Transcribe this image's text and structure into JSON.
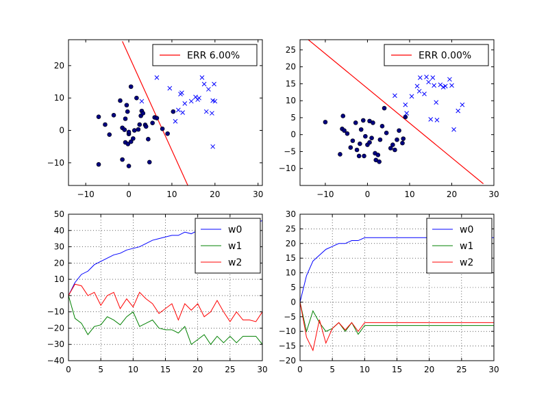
{
  "chart_data": [
    {
      "type": "scatter",
      "xlim": [
        -14,
        31
      ],
      "ylim": [
        -17,
        28
      ],
      "xticks": [
        -10,
        0,
        10,
        20,
        30
      ],
      "yticks": [
        -10,
        0,
        10,
        20
      ],
      "legend": {
        "label": "ERR 6.00%",
        "placement": "top-right"
      },
      "colors": {
        "boundary": "#ff0000",
        "class0": "#000080",
        "class1": "#0000ff"
      },
      "grid": false,
      "decision_line": [
        [
          -1.5,
          27.5
        ],
        [
          13.7,
          -17
        ]
      ],
      "class0": {
        "marker": "circle",
        "points": [
          [
            -7,
            4.2
          ],
          [
            -5.5,
            1.8
          ],
          [
            -4.5,
            -1.3
          ],
          [
            -3.5,
            4.7
          ],
          [
            -2,
            9.2
          ],
          [
            -1.5,
            0.8
          ],
          [
            -1.5,
            -9
          ],
          [
            -1,
            0.2
          ],
          [
            -0.8,
            3.6
          ],
          [
            -0.8,
            -3.7
          ],
          [
            -0.5,
            7.8
          ],
          [
            -0.3,
            5.8
          ],
          [
            -0.2,
            -4.2
          ],
          [
            0,
            -11
          ],
          [
            0,
            -1.1
          ],
          [
            0,
            -0.5
          ],
          [
            0.5,
            -3.5
          ],
          [
            0.5,
            13.5
          ],
          [
            1,
            -2.5
          ],
          [
            1.3,
            0
          ],
          [
            1.8,
            10
          ],
          [
            2.2,
            0.3
          ],
          [
            2.5,
            1.8
          ],
          [
            2.8,
            4.5
          ],
          [
            3,
            6
          ],
          [
            3.3,
            5.3
          ],
          [
            3.8,
            1.7
          ],
          [
            4,
            1.2
          ],
          [
            4.5,
            -2.7
          ],
          [
            4.8,
            -9.8
          ],
          [
            5.5,
            2.3
          ],
          [
            6,
            4
          ],
          [
            6.5,
            3.8
          ],
          [
            7.8,
            0.5
          ],
          [
            9,
            -1
          ],
          [
            10.3,
            5.8
          ],
          [
            -7,
            -10.5
          ]
        ]
      },
      "class1": {
        "marker": "x",
        "points": [
          [
            3,
            9
          ],
          [
            6.5,
            16.3
          ],
          [
            9.5,
            13
          ],
          [
            10.8,
            2.8
          ],
          [
            11.5,
            6.3
          ],
          [
            12,
            11.2
          ],
          [
            12.3,
            11.6
          ],
          [
            12.5,
            5.5
          ],
          [
            13,
            8.3
          ],
          [
            14.5,
            9
          ],
          [
            15.5,
            10.3
          ],
          [
            16,
            9.5
          ],
          [
            16.3,
            10
          ],
          [
            17,
            16.3
          ],
          [
            17.5,
            14.3
          ],
          [
            18,
            5.8
          ],
          [
            18.5,
            12.7
          ],
          [
            19.3,
            5.3
          ],
          [
            19.5,
            9.2
          ],
          [
            19.8,
            14.3
          ],
          [
            20,
            9
          ],
          [
            19.5,
            -5
          ]
        ]
      }
    },
    {
      "type": "scatter",
      "xlim": [
        -16,
        30
      ],
      "ylim": [
        -15,
        28
      ],
      "xticks": [
        -10,
        0,
        10,
        20,
        30
      ],
      "yticks": [
        -10,
        -5,
        0,
        5,
        10,
        15,
        20,
        25
      ],
      "legend": {
        "label": "ERR 0.00%",
        "placement": "top-right"
      },
      "colors": {
        "boundary": "#ff0000",
        "class0": "#000080",
        "class1": "#0000ff"
      },
      "grid": false,
      "decision_line": [
        [
          -16,
          30
        ],
        [
          27.5,
          -14.5
        ]
      ],
      "class0": {
        "marker": "circle",
        "points": [
          [
            -10,
            3.7
          ],
          [
            -6.5,
            -5.8
          ],
          [
            -6,
            1.7
          ],
          [
            -5.8,
            5.5
          ],
          [
            -5.5,
            1.2
          ],
          [
            -4.8,
            0.3
          ],
          [
            -4,
            -3.8
          ],
          [
            -3.5,
            -1.8
          ],
          [
            -2.8,
            3.5
          ],
          [
            -2.5,
            -4.5
          ],
          [
            -2,
            -6.3
          ],
          [
            -1.8,
            -2.7
          ],
          [
            -1.5,
            1.5
          ],
          [
            -1,
            4.2
          ],
          [
            -0.8,
            -6.3
          ],
          [
            -0.5,
            -0.5
          ],
          [
            0,
            -3
          ],
          [
            0.5,
            -2.3
          ],
          [
            0.5,
            4
          ],
          [
            1,
            -1
          ],
          [
            1.3,
            3.5
          ],
          [
            1.8,
            -5.5
          ],
          [
            2,
            -7.5
          ],
          [
            2.5,
            -6
          ],
          [
            2.8,
            -8
          ],
          [
            3,
            -1.5
          ],
          [
            3.5,
            2.5
          ],
          [
            4,
            7.8
          ],
          [
            4.5,
            0.5
          ],
          [
            5.5,
            -4
          ],
          [
            6,
            -3
          ],
          [
            6.5,
            -4.5
          ],
          [
            7,
            -1.5
          ],
          [
            7.5,
            1.2
          ],
          [
            8.3,
            -2.5
          ],
          [
            8.5,
            -1.2
          ],
          [
            9,
            5.2
          ]
        ]
      },
      "class1": {
        "marker": "x",
        "points": [
          [
            6.5,
            11.5
          ],
          [
            9,
            8.8
          ],
          [
            9.3,
            6.3
          ],
          [
            10.5,
            11.3
          ],
          [
            11.8,
            14.3
          ],
          [
            12.3,
            12.8
          ],
          [
            12.5,
            16.8
          ],
          [
            13.5,
            12
          ],
          [
            14,
            17
          ],
          [
            14.5,
            15.5
          ],
          [
            15,
            4.5
          ],
          [
            15.5,
            16.8
          ],
          [
            15.8,
            14.5
          ],
          [
            16.3,
            9.5
          ],
          [
            16.5,
            4.3
          ],
          [
            17.3,
            14.7
          ],
          [
            18.5,
            14.3
          ],
          [
            19.5,
            16.3
          ],
          [
            20.5,
            1.5
          ],
          [
            21.5,
            7
          ],
          [
            22.5,
            8.8
          ],
          [
            20,
            14.5
          ],
          [
            18,
            14
          ]
        ]
      }
    },
    {
      "type": "line",
      "xlim": [
        0,
        30
      ],
      "ylim": [
        -40,
        50
      ],
      "xticks": [
        0,
        5,
        10,
        15,
        20,
        25,
        30
      ],
      "yticks": [
        -40,
        -30,
        -20,
        -10,
        0,
        10,
        20,
        30,
        40,
        50
      ],
      "grid": true,
      "legend_placement": "top-right",
      "x": [
        0,
        1,
        2,
        3,
        4,
        5,
        6,
        7,
        8,
        9,
        10,
        11,
        12,
        13,
        14,
        15,
        16,
        17,
        18,
        19,
        20,
        21,
        22,
        23,
        24,
        25,
        26,
        27,
        28,
        29,
        30
      ],
      "series": [
        {
          "name": "w0",
          "color": "#0000ff",
          "values": [
            0,
            8,
            13,
            15,
            19,
            21,
            23,
            25,
            26,
            28,
            29,
            30,
            32,
            34,
            35,
            36,
            37,
            37,
            39,
            38,
            40,
            41,
            41,
            42,
            43,
            43,
            44,
            44,
            45,
            45,
            46
          ]
        },
        {
          "name": "w1",
          "color": "#008000",
          "values": [
            0,
            -14,
            -17,
            -24,
            -19,
            -18,
            -13,
            -15,
            -18,
            -13,
            -10,
            -19,
            -17,
            -15,
            -20,
            -21,
            -21,
            -23,
            -19,
            -30,
            -27,
            -24,
            -30,
            -25,
            -29,
            -25,
            -29,
            -25,
            -25,
            -25,
            -30
          ]
        },
        {
          "name": "w2",
          "color": "#ff0000",
          "values": [
            0,
            7,
            6,
            0,
            2,
            -6,
            0,
            2,
            -8,
            -2,
            -7,
            2,
            -2,
            -5,
            -11,
            -8,
            -5,
            -15,
            -5,
            -9,
            -5,
            -13,
            -10,
            -3,
            -10,
            -16,
            -10,
            -15,
            -15,
            -16,
            -10
          ]
        }
      ]
    },
    {
      "type": "line",
      "xlim": [
        0,
        30
      ],
      "ylim": [
        -20,
        30
      ],
      "xticks": [
        0,
        5,
        10,
        15,
        20,
        25,
        30
      ],
      "yticks": [
        -20,
        -15,
        -10,
        -5,
        0,
        5,
        10,
        15,
        20,
        25,
        30
      ],
      "grid": true,
      "legend_placement": "top-right",
      "x": [
        0,
        1,
        2,
        3,
        4,
        5,
        6,
        7,
        8,
        9,
        10,
        11,
        12,
        13,
        14,
        15,
        16,
        17,
        18,
        19,
        20,
        21,
        22,
        23,
        24,
        25,
        26,
        27,
        28,
        29,
        30
      ],
      "series": [
        {
          "name": "w0",
          "color": "#0000ff",
          "values": [
            0,
            9,
            14,
            16,
            18,
            19,
            20,
            20,
            21,
            21,
            22,
            22,
            22,
            22,
            22,
            22,
            22,
            22,
            22,
            22,
            22,
            22,
            22,
            22,
            22,
            22,
            22,
            22,
            22,
            22,
            22
          ]
        },
        {
          "name": "w1",
          "color": "#008000",
          "values": [
            0,
            -10,
            -3,
            -7,
            -10,
            -9,
            -7,
            -10,
            -7,
            -11,
            -8,
            -8,
            -8,
            -8,
            -8,
            -8,
            -8,
            -8,
            -8,
            -8,
            -8,
            -8,
            -8,
            -8,
            -8,
            -8,
            -8,
            -8,
            -8,
            -8,
            -8
          ]
        },
        {
          "name": "w2",
          "color": "#ff0000",
          "values": [
            0,
            -12,
            -16.5,
            -6,
            -14,
            -9,
            -7,
            -9.5,
            -7,
            -10,
            -7,
            -7,
            -7,
            -7,
            -7,
            -7,
            -7,
            -7,
            -7,
            -7,
            -7,
            -7,
            -7,
            -7,
            -7,
            -7,
            -7,
            -7,
            -7,
            -7,
            -7
          ]
        }
      ]
    }
  ]
}
